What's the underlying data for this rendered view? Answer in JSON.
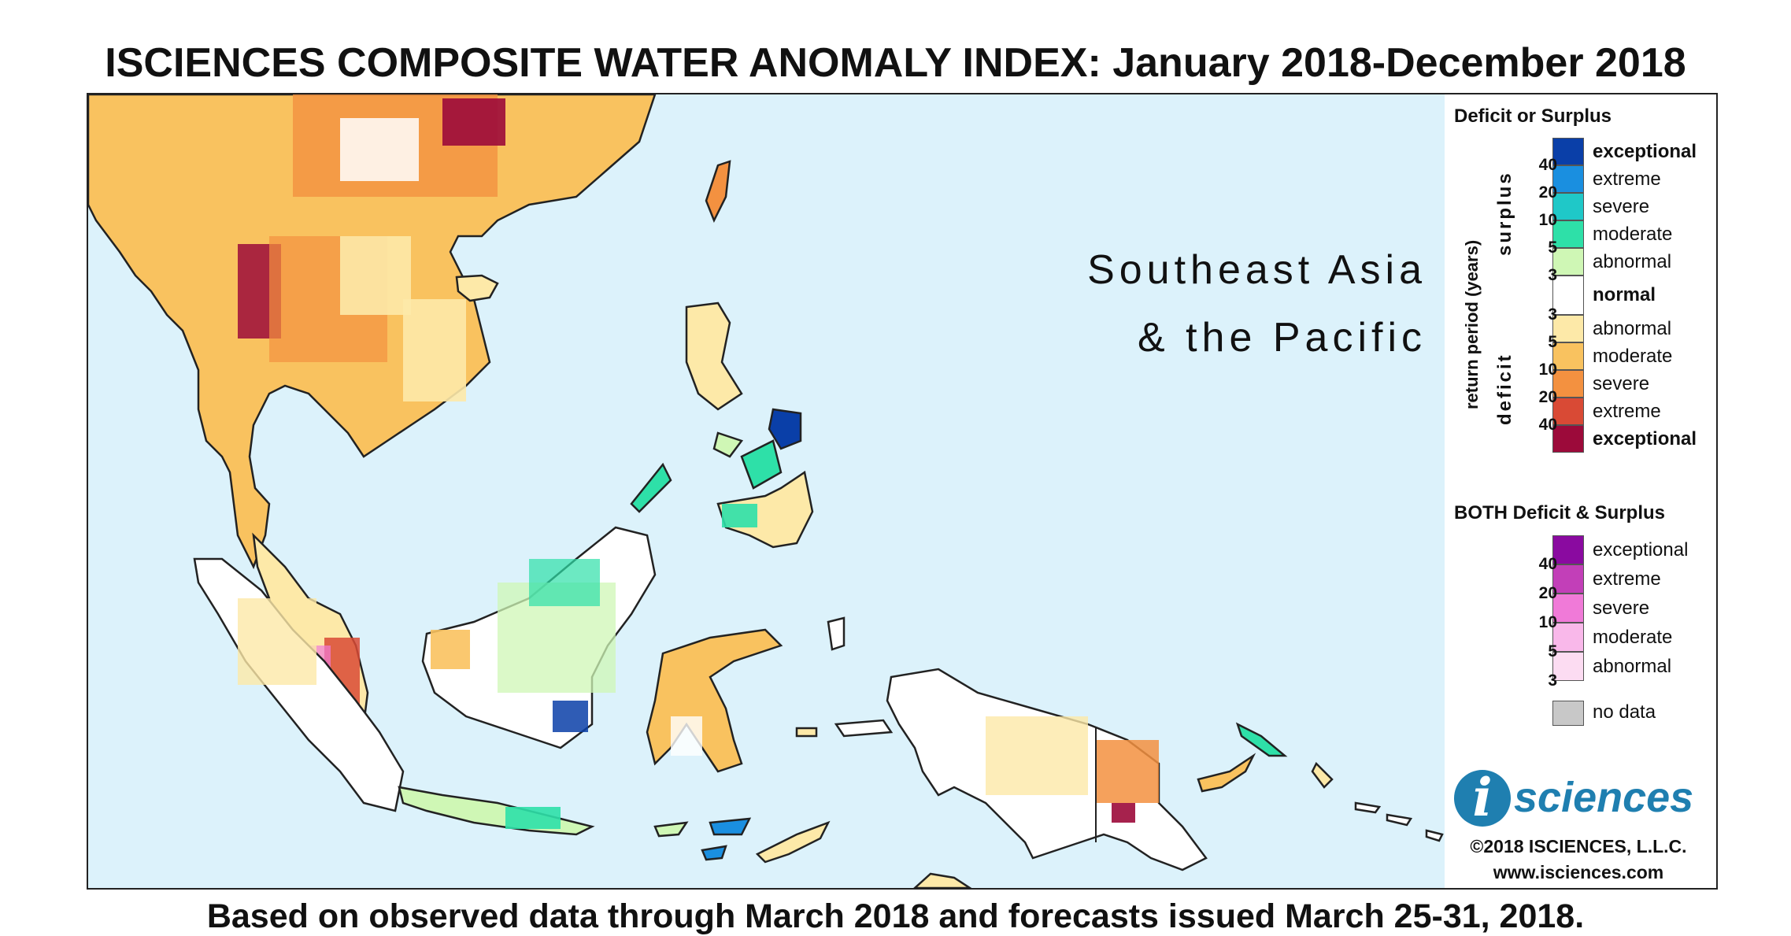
{
  "title": "ISCIENCES COMPOSITE WATER ANOMALY INDEX: January 2018-December 2018",
  "region_label": {
    "line1": "Southeast Asia",
    "line2": "& the Pacific"
  },
  "legend": {
    "heading1": "Deficit or Surplus",
    "axis_label": "return period (years)",
    "surplus_label": "surplus",
    "deficit_label": "deficit",
    "scale": [
      {
        "label": "exceptional",
        "color": "#0a3fa8",
        "bold": true
      },
      {
        "label": "extreme",
        "color": "#1a8fe0",
        "bold": false
      },
      {
        "label": "severe",
        "color": "#1fc8c8",
        "bold": false
      },
      {
        "label": "moderate",
        "color": "#2ee0a8",
        "bold": false
      },
      {
        "label": "abnormal",
        "color": "#cff7b5",
        "bold": false
      },
      {
        "label": "normal",
        "color": "#ffffff",
        "bold": true
      },
      {
        "label": "abnormal",
        "color": "#fde9a8",
        "bold": false
      },
      {
        "label": "moderate",
        "color": "#f9c25f",
        "bold": false
      },
      {
        "label": "severe",
        "color": "#f39140",
        "bold": false
      },
      {
        "label": "extreme",
        "color": "#d94a35",
        "bold": false
      },
      {
        "label": "exceptional",
        "color": "#9c0a3a",
        "bold": true
      }
    ],
    "surplus_ticks": [
      "40",
      "20",
      "10",
      "5",
      "3"
    ],
    "deficit_ticks": [
      "3",
      "5",
      "10",
      "20",
      "40"
    ],
    "heading2": "BOTH Deficit & Surplus",
    "both_scale": [
      {
        "label": "exceptional",
        "color": "#8a0aa0"
      },
      {
        "label": "extreme",
        "color": "#c23fb8"
      },
      {
        "label": "severe",
        "color": "#f07ad8"
      },
      {
        "label": "moderate",
        "color": "#f9b8ea"
      },
      {
        "label": "abnormal",
        "color": "#fcdcf2"
      }
    ],
    "both_ticks": [
      "40",
      "20",
      "10",
      "5",
      "3"
    ],
    "nodata": {
      "label": "no data",
      "color": "#c8c8c8"
    }
  },
  "logo": {
    "letter": "i",
    "text": "sciences",
    "copyright": "©2018 ISCIENCES, L.L.C.",
    "url": "www.isciences.com"
  },
  "footer": "Based on observed data through March 2018 and forecasts issued March 25-31, 2018.",
  "colors": {
    "ocean": "#dcf2fb",
    "border": "#222222"
  }
}
